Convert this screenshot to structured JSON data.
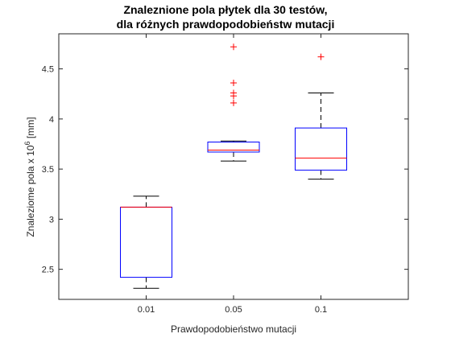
{
  "chart_data": {
    "type": "boxplot",
    "title_lines": [
      "Znaleznione pola płytek dla 30 testów,",
      "dla różnych prawdopodobieństw mutacji"
    ],
    "xlabel": "Prawdopodobieństwo mutacji",
    "ylabel": {
      "base": "Znaleziome pola x 10",
      "exponent": "6",
      "unit": " [mm]"
    },
    "ylim": [
      2.2,
      4.85
    ],
    "yticks": [
      "2.5",
      "3",
      "3.5",
      "4",
      "4.5"
    ],
    "categories": [
      "0.01",
      "0.05",
      "0.1"
    ],
    "boxes": [
      {
        "whisker_low": 2.31,
        "q1": 2.42,
        "median": 3.12,
        "q3": 3.12,
        "whisker_high": 3.23,
        "outliers": []
      },
      {
        "whisker_low": 3.58,
        "q1": 3.67,
        "median": 3.69,
        "q3": 3.77,
        "whisker_high": 3.78,
        "outliers": [
          4.72,
          4.36,
          4.26,
          4.23,
          4.16
        ]
      },
      {
        "whisker_low": 3.4,
        "q1": 3.49,
        "median": 3.61,
        "q3": 3.91,
        "whisker_high": 4.26,
        "outliers": [
          4.62
        ]
      }
    ],
    "colors": {
      "box": "#0000ff",
      "median": "#ff0000",
      "whisker": "#000000",
      "outlier": "#ff0000",
      "axis": "#262626"
    },
    "grid": false
  }
}
